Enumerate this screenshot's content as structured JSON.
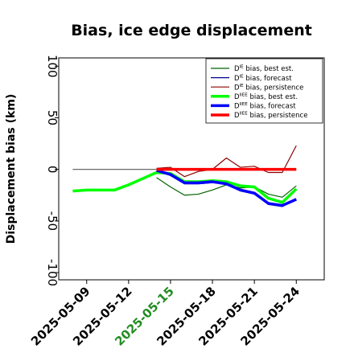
{
  "chart_data": {
    "type": "line",
    "title": "Bias, ice edge displacement",
    "ylabel": "Displacement bias (km)",
    "xlabel": "",
    "ylim": [
      -107,
      108
    ],
    "xlim": [
      "2025-05-07",
      "2025-05-26"
    ],
    "grid": false,
    "legend_position": "top-right",
    "x_ticks": [
      "2025-05-09",
      "2025-05-12",
      "2025-05-15",
      "2025-05-18",
      "2025-05-21",
      "2025-05-24"
    ],
    "x_tick_highlight": {
      "label": "2025-05-15",
      "color": "#228b22"
    },
    "y_ticks": [
      100,
      50,
      0,
      -50,
      -100
    ],
    "reference_line": {
      "y": 0,
      "from": "2025-05-08",
      "to": "2025-05-24",
      "color": "#6b6b6b"
    },
    "series": [
      {
        "name": "D^IE bias, best est.",
        "legend_label": "bias, best est.",
        "legend_prefix": "D",
        "legend_sup": "IE",
        "color": "#006400",
        "width": 1.2,
        "x": [
          "2025-05-14",
          "2025-05-15",
          "2025-05-16",
          "2025-05-17",
          "2025-05-18",
          "2025-05-19",
          "2025-05-20",
          "2025-05-21",
          "2025-05-22",
          "2025-05-23",
          "2025-05-24"
        ],
        "y": [
          -8,
          -17,
          -25,
          -24,
          -20,
          -15,
          -18,
          -17,
          -24,
          -27,
          -16
        ]
      },
      {
        "name": "D^IE bias, forecast",
        "legend_label": "bias, forecast",
        "legend_prefix": "D",
        "legend_sup": "IE",
        "color": "#00008b",
        "width": 1.2,
        "x": [
          "2025-05-14",
          "2025-05-15",
          "2025-05-16",
          "2025-05-17",
          "2025-05-18",
          "2025-05-19",
          "2025-05-20",
          "2025-05-21",
          "2025-05-22",
          "2025-05-23",
          "2025-05-24"
        ],
        "y": [
          -1,
          -6,
          -14,
          -14,
          -13,
          -14,
          -21,
          -24,
          -34,
          -36,
          -29
        ]
      },
      {
        "name": "D^IE bias, persistence",
        "legend_label": "bias, persistence",
        "legend_prefix": "D",
        "legend_sup": "IE",
        "color": "#8b0000",
        "width": 1.2,
        "x": [
          "2025-05-14",
          "2025-05-15",
          "2025-05-16",
          "2025-05-17",
          "2025-05-18",
          "2025-05-19",
          "2025-05-20",
          "2025-05-21",
          "2025-05-22",
          "2025-05-23",
          "2025-05-24"
        ],
        "y": [
          1,
          2,
          -7,
          -2,
          0,
          11,
          2,
          3,
          -3,
          -3,
          23
        ]
      },
      {
        "name": "D^IIEE bias, best est.",
        "legend_label": "bias, best est.",
        "legend_prefix": "D",
        "legend_sup": "IIEE",
        "color": "#00ff00",
        "width": 3.5,
        "x": [
          "2025-05-08",
          "2025-05-09",
          "2025-05-10",
          "2025-05-11",
          "2025-05-12",
          "2025-05-13",
          "2025-05-14",
          "2025-05-15",
          "2025-05-16",
          "2025-05-17",
          "2025-05-18",
          "2025-05-19",
          "2025-05-20",
          "2025-05-21",
          "2025-05-22",
          "2025-05-23",
          "2025-05-24"
        ],
        "y": [
          -21,
          -20,
          -20,
          -20,
          -15,
          -9,
          -3,
          -4,
          -12,
          -12,
          -11,
          -12,
          -16,
          -17,
          -28,
          -32,
          -19
        ]
      },
      {
        "name": "D^IIEE bias, forecast",
        "legend_label": "bias, forecast",
        "legend_prefix": "D",
        "legend_sup": "IIEE",
        "color": "#0000ff",
        "width": 3.5,
        "x": [
          "2025-05-14",
          "2025-05-15",
          "2025-05-16",
          "2025-05-17",
          "2025-05-18",
          "2025-05-19",
          "2025-05-20",
          "2025-05-21",
          "2025-05-22",
          "2025-05-23",
          "2025-05-24"
        ],
        "y": [
          -1,
          -5,
          -13,
          -13,
          -12,
          -14,
          -20,
          -23,
          -33,
          -35,
          -29
        ]
      },
      {
        "name": "D^IIEE bias, persistence",
        "legend_label": "bias, persistence",
        "legend_prefix": "D",
        "legend_sup": "IIEE",
        "color": "#ff0000",
        "width": 3.5,
        "x": [
          "2025-05-14",
          "2025-05-15",
          "2025-05-16",
          "2025-05-17",
          "2025-05-18",
          "2025-05-19",
          "2025-05-20",
          "2025-05-21",
          "2025-05-22",
          "2025-05-23",
          "2025-05-24"
        ],
        "y": [
          0,
          0,
          0,
          0,
          0,
          0,
          0,
          0,
          0,
          0,
          0
        ]
      }
    ]
  }
}
